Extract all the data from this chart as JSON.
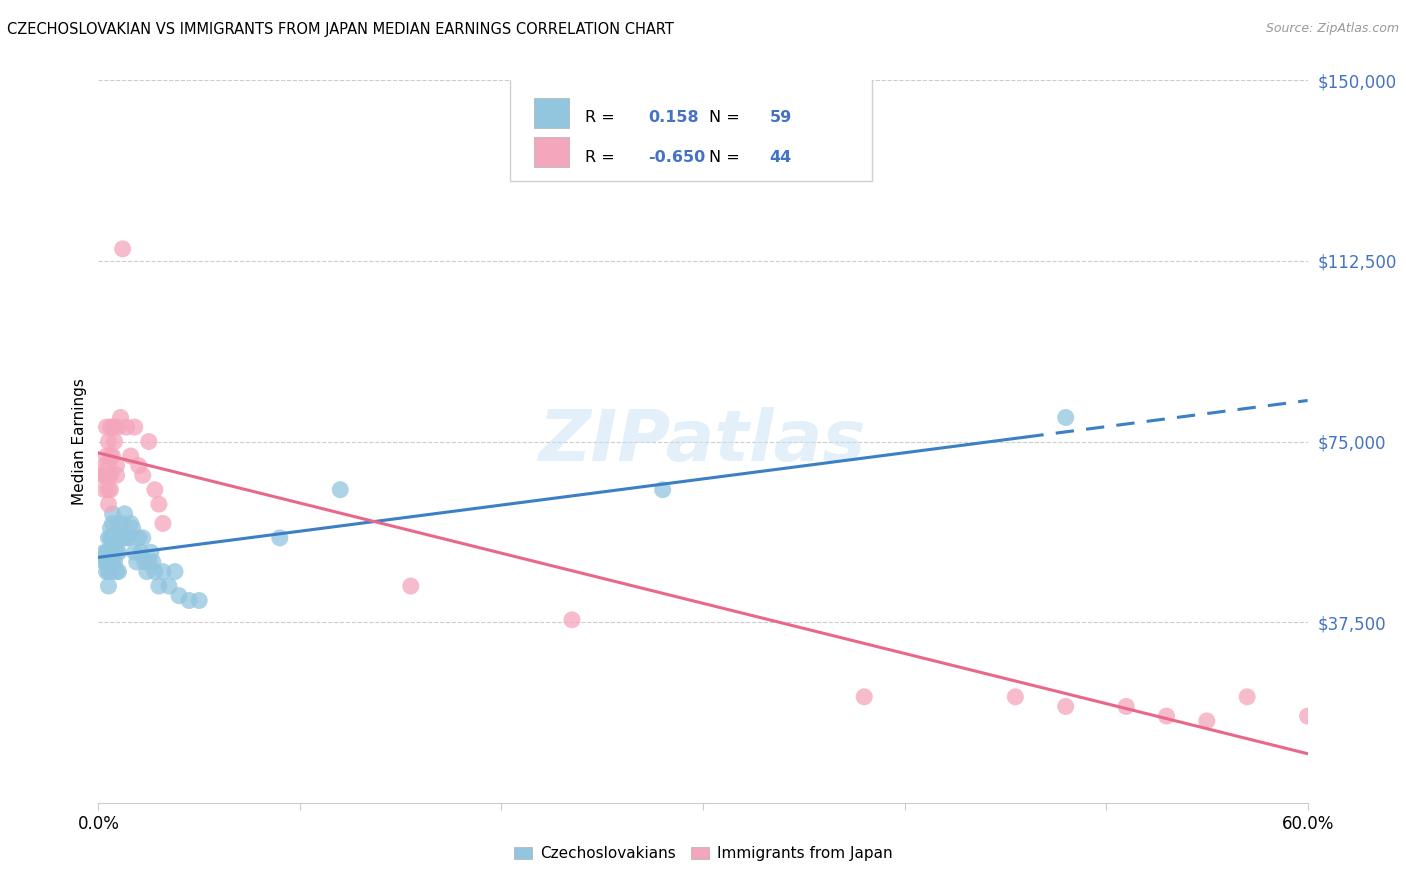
{
  "title": "CZECHOSLOVAKIAN VS IMMIGRANTS FROM JAPAN MEDIAN EARNINGS CORRELATION CHART",
  "source": "Source: ZipAtlas.com",
  "ylabel": "Median Earnings",
  "yticks": [
    0,
    37500,
    75000,
    112500,
    150000
  ],
  "ytick_labels": [
    "",
    "$37,500",
    "$75,000",
    "$112,500",
    "$150,000"
  ],
  "xmin": 0.0,
  "xmax": 0.6,
  "ymin": 0,
  "ymax": 150000,
  "blue_R": "0.158",
  "blue_N": "59",
  "pink_R": "-0.650",
  "pink_N": "44",
  "blue_color": "#92c5de",
  "pink_color": "#f4a6bc",
  "blue_line_color": "#3b7fc4",
  "pink_line_color": "#e8688a",
  "blue_line_solid_end": 0.46,
  "legend_label_blue": "Czechoslovakians",
  "legend_label_pink": "Immigrants from Japan",
  "watermark_text": "ZIPatlas",
  "blue_scatter_x": [
    0.003,
    0.003,
    0.004,
    0.004,
    0.004,
    0.005,
    0.005,
    0.005,
    0.005,
    0.005,
    0.006,
    0.006,
    0.006,
    0.006,
    0.006,
    0.007,
    0.007,
    0.007,
    0.007,
    0.007,
    0.008,
    0.008,
    0.009,
    0.009,
    0.009,
    0.01,
    0.01,
    0.01,
    0.01,
    0.011,
    0.011,
    0.012,
    0.013,
    0.014,
    0.015,
    0.016,
    0.017,
    0.018,
    0.019,
    0.02,
    0.021,
    0.022,
    0.023,
    0.024,
    0.025,
    0.026,
    0.027,
    0.028,
    0.03,
    0.032,
    0.035,
    0.038,
    0.04,
    0.045,
    0.05,
    0.09,
    0.12,
    0.28,
    0.48
  ],
  "blue_scatter_y": [
    52000,
    50000,
    52000,
    50000,
    48000,
    55000,
    52000,
    50000,
    48000,
    45000,
    57000,
    55000,
    52000,
    50000,
    48000,
    60000,
    58000,
    55000,
    52000,
    50000,
    55000,
    50000,
    55000,
    52000,
    48000,
    57000,
    55000,
    52000,
    48000,
    58000,
    55000,
    55000,
    60000,
    55000,
    55000,
    58000,
    57000,
    52000,
    50000,
    55000,
    52000,
    55000,
    50000,
    48000,
    50000,
    52000,
    50000,
    48000,
    45000,
    48000,
    45000,
    48000,
    43000,
    42000,
    42000,
    55000,
    65000,
    65000,
    80000
  ],
  "pink_scatter_x": [
    0.002,
    0.003,
    0.003,
    0.003,
    0.004,
    0.004,
    0.004,
    0.005,
    0.005,
    0.005,
    0.005,
    0.005,
    0.006,
    0.006,
    0.006,
    0.006,
    0.007,
    0.007,
    0.008,
    0.008,
    0.009,
    0.009,
    0.01,
    0.011,
    0.012,
    0.014,
    0.016,
    0.018,
    0.02,
    0.022,
    0.025,
    0.028,
    0.03,
    0.032,
    0.155,
    0.235,
    0.38,
    0.455,
    0.48,
    0.51,
    0.53,
    0.55,
    0.57,
    0.6
  ],
  "pink_scatter_y": [
    68000,
    70000,
    68000,
    65000,
    78000,
    72000,
    68000,
    75000,
    70000,
    68000,
    65000,
    62000,
    78000,
    72000,
    68000,
    65000,
    78000,
    72000,
    78000,
    75000,
    70000,
    68000,
    78000,
    80000,
    115000,
    78000,
    72000,
    78000,
    70000,
    68000,
    75000,
    65000,
    62000,
    58000,
    45000,
    38000,
    22000,
    22000,
    20000,
    20000,
    18000,
    17000,
    22000,
    18000
  ]
}
